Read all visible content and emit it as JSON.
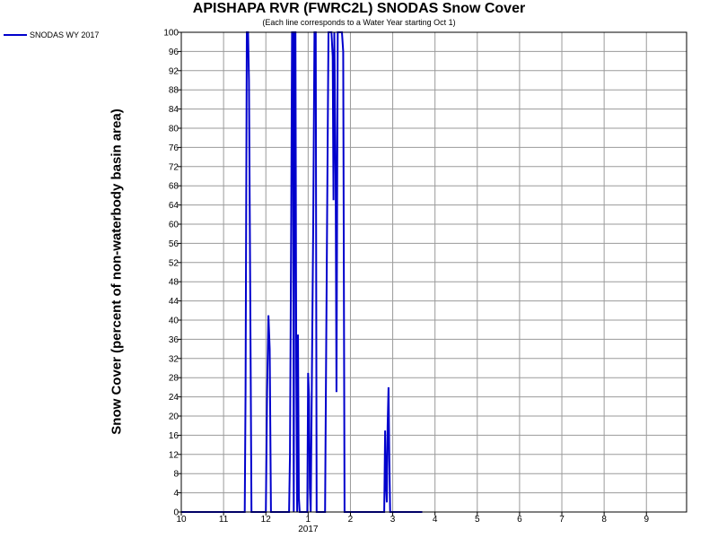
{
  "chart_data": {
    "type": "line",
    "title": "APISHAPA RVR (FWRC2L) SNODAS Snow Cover",
    "subtitle": "(Each line corresponds to a Water Year starting Oct 1)",
    "ylabel": "Snow Cover (percent of non-waterbody basin area)",
    "xlabel": "",
    "ylim": [
      0,
      100
    ],
    "yticks": [
      "0",
      "4",
      "8",
      "12",
      "16",
      "20",
      "24",
      "28",
      "32",
      "36",
      "40",
      "44",
      "48",
      "52",
      "56",
      "60",
      "64",
      "68",
      "72",
      "76",
      "80",
      "84",
      "88",
      "92",
      "96",
      "100"
    ],
    "x_unit": "month (1 = Oct 1 of water year, 13 = next Oct 1)",
    "xlim": [
      1,
      12.95
    ],
    "xticks": [
      {
        "value": 1,
        "label": "10"
      },
      {
        "value": 2,
        "label": "11"
      },
      {
        "value": 3,
        "label": "12"
      },
      {
        "value": 4,
        "label": "1",
        "sublabel": "2017"
      },
      {
        "value": 5,
        "label": "2"
      },
      {
        "value": 6,
        "label": "3"
      },
      {
        "value": 7,
        "label": "4"
      },
      {
        "value": 8,
        "label": "5"
      },
      {
        "value": 9,
        "label": "6"
      },
      {
        "value": 10,
        "label": "7"
      },
      {
        "value": 11,
        "label": "8"
      },
      {
        "value": 12,
        "label": "9"
      }
    ],
    "grid": true,
    "legend_position": "top-left",
    "series": [
      {
        "name": "SNODAS WY 2017",
        "color": "#0000cc",
        "points": [
          [
            1.0,
            0
          ],
          [
            2.5,
            0
          ],
          [
            2.52,
            25
          ],
          [
            2.55,
            100
          ],
          [
            2.58,
            100
          ],
          [
            2.6,
            90
          ],
          [
            2.62,
            62
          ],
          [
            2.64,
            30
          ],
          [
            2.66,
            0
          ],
          [
            3.0,
            0
          ],
          [
            3.03,
            25
          ],
          [
            3.06,
            41
          ],
          [
            3.09,
            34
          ],
          [
            3.12,
            0
          ],
          [
            3.55,
            0
          ],
          [
            3.57,
            12
          ],
          [
            3.6,
            62
          ],
          [
            3.62,
            100
          ],
          [
            3.64,
            100
          ],
          [
            3.66,
            0
          ],
          [
            3.68,
            100
          ],
          [
            3.7,
            100
          ],
          [
            3.72,
            30
          ],
          [
            3.74,
            0
          ],
          [
            3.76,
            37
          ],
          [
            3.78,
            3
          ],
          [
            3.8,
            0
          ],
          [
            3.98,
            0
          ],
          [
            4.0,
            29
          ],
          [
            4.02,
            24
          ],
          [
            4.04,
            5
          ],
          [
            4.06,
            0
          ],
          [
            4.12,
            60
          ],
          [
            4.15,
            100
          ],
          [
            4.18,
            100
          ],
          [
            4.2,
            0
          ],
          [
            4.4,
            0
          ],
          [
            4.42,
            25
          ],
          [
            4.45,
            62
          ],
          [
            4.48,
            100
          ],
          [
            4.55,
            100
          ],
          [
            4.58,
            95
          ],
          [
            4.6,
            65
          ],
          [
            4.62,
            100
          ],
          [
            4.65,
            70
          ],
          [
            4.67,
            25
          ],
          [
            4.7,
            100
          ],
          [
            4.8,
            100
          ],
          [
            4.83,
            96
          ],
          [
            4.86,
            0
          ],
          [
            5.8,
            0
          ],
          [
            5.82,
            17
          ],
          [
            5.84,
            6
          ],
          [
            5.86,
            2
          ],
          [
            5.88,
            18
          ],
          [
            5.9,
            26
          ],
          [
            5.92,
            11
          ],
          [
            5.94,
            0
          ],
          [
            6.7,
            0
          ]
        ]
      }
    ]
  },
  "legend": {
    "label": "SNODAS WY 2017",
    "color": "#0000cc"
  }
}
